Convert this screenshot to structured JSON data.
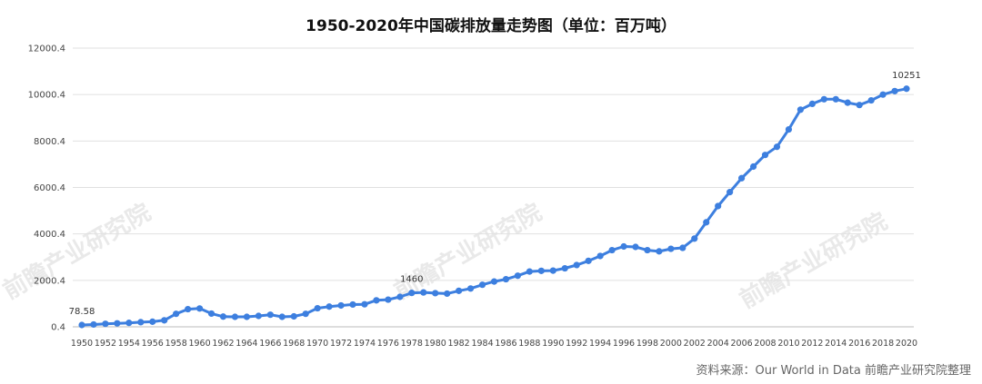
{
  "title": "1950-2020年中国碳排放量走势图（单位：百万吨）",
  "source": "资料来源：Our World in Data 前瞻产业研究院整理",
  "watermark": "前瞻产业研究院",
  "colors": {
    "line": "#3d7fdf",
    "grid": "#e0e0e0",
    "axis": "#bbbbbb"
  },
  "chart_data": {
    "type": "line",
    "title": "1950-2020年中国碳排放量走势图（单位：百万吨）",
    "xlabel": "",
    "ylabel": "",
    "ylim": [
      0.4,
      12000.4
    ],
    "yticks": [
      "0.4",
      "2000.4",
      "4000.4",
      "6000.4",
      "8000.4",
      "10000.4",
      "12000.4"
    ],
    "xticks": [
      "1950",
      "1952",
      "1954",
      "1956",
      "1958",
      "1960",
      "1962",
      "1964",
      "1966",
      "1968",
      "1970",
      "1972",
      "1974",
      "1976",
      "1978",
      "1980",
      "1982",
      "1984",
      "1986",
      "1988",
      "1990",
      "1992",
      "1994",
      "1996",
      "1998",
      "2000",
      "2002",
      "2004",
      "2006",
      "2008",
      "2010",
      "2012",
      "2014",
      "2016",
      "2018",
      "2020"
    ],
    "grid": "horizontal",
    "series": [
      {
        "x": [
          1950,
          1951,
          1952,
          1953,
          1954,
          1955,
          1956,
          1957,
          1958,
          1959,
          1960,
          1961,
          1962,
          1963,
          1964,
          1965,
          1966,
          1967,
          1968,
          1969,
          1970,
          1971,
          1972,
          1973,
          1974,
          1975,
          1976,
          1977,
          1978,
          1979,
          1980,
          1981,
          1982,
          1983,
          1984,
          1985,
          1986,
          1987,
          1988,
          1989,
          1990,
          1991,
          1992,
          1993,
          1994,
          1995,
          1996,
          1997,
          1998,
          1999,
          2000,
          2001,
          2002,
          2003,
          2004,
          2005,
          2006,
          2007,
          2008,
          2009,
          2010,
          2011,
          2012,
          2013,
          2014,
          2015,
          2016,
          2017,
          2018,
          2019,
          2020
        ],
        "values": [
          78.58,
          100,
          130,
          150,
          170,
          200,
          220,
          280,
          560,
          760,
          790,
          570,
          440,
          430,
          430,
          470,
          520,
          430,
          450,
          560,
          800,
          870,
          920,
          960,
          970,
          1140,
          1170,
          1290,
          1460,
          1480,
          1450,
          1430,
          1550,
          1650,
          1810,
          1950,
          2050,
          2200,
          2380,
          2410,
          2420,
          2520,
          2660,
          2840,
          3050,
          3300,
          3460,
          3440,
          3300,
          3250,
          3360,
          3400,
          3800,
          4500,
          5200,
          5800,
          6400,
          6900,
          7400,
          7750,
          8500,
          9350,
          9600,
          9800,
          9800,
          9650,
          9550,
          9750,
          10000,
          10150,
          10251
        ],
        "labels": {
          "1950": "78.58",
          "1978": "1460",
          "2020": "10251"
        }
      }
    ]
  }
}
